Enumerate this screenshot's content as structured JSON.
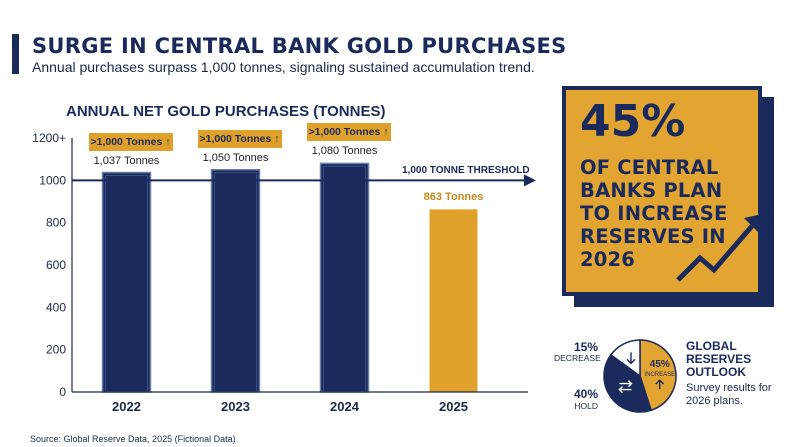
{
  "header": {
    "title": "SURGE IN CENTRAL BANK GOLD PURCHASES",
    "subtitle": "Annual purchases surpass 1,000 tonnes, signaling sustained accumulation trend."
  },
  "chart_data": [
    {
      "type": "bar",
      "title": "ANNUAL NET GOLD PURCHASES (TONNES)",
      "categories": [
        "2022",
        "2023",
        "2024",
        "2025"
      ],
      "values": [
        1037,
        1050,
        1080,
        863
      ],
      "value_labels": [
        "1,037 Tonnes",
        "1,050 Tonnes",
        "1,080 Tonnes",
        "863 Tonnes"
      ],
      "badges": [
        ">1,000 Tonnes ↑",
        ">1,000 Tonnes ↑",
        ">1,000 Tonnes ↑",
        ""
      ],
      "yticks": [
        0,
        200,
        400,
        600,
        800,
        1000
      ],
      "ytick_top_label": "1200+",
      "ylim": [
        0,
        1200
      ],
      "threshold": {
        "value": 1000,
        "label": "1,000 TONNE THRESHOLD"
      },
      "colors": {
        "bars": "#1b2a5c",
        "highlight": "#e0a12b"
      }
    },
    {
      "type": "pie",
      "title": "GLOBAL RESERVES OUTLOOK",
      "note": "Survey results for 2026 plans.",
      "slices": [
        {
          "label": "INCREASE",
          "value": 45,
          "pct_label": "45%",
          "color": "#e3a532",
          "icon": "arrow-up-icon"
        },
        {
          "label": "HOLD",
          "value": 40,
          "pct_label": "40%",
          "color": "#1b2a5c",
          "icon": "swap-arrows-icon"
        },
        {
          "label": "DECREASE",
          "value": 15,
          "pct_label": "15%",
          "color": "#ffffff",
          "icon": "arrow-down-icon"
        }
      ]
    }
  ],
  "callout": {
    "percent": "45%",
    "text": "OF CENTRAL BANKS PLAN TO INCREASE RESERVES IN 2026",
    "icon": "trend-arrow-icon"
  },
  "source": "Source: Global Reserve Data, 2025 (Fictional Data)"
}
